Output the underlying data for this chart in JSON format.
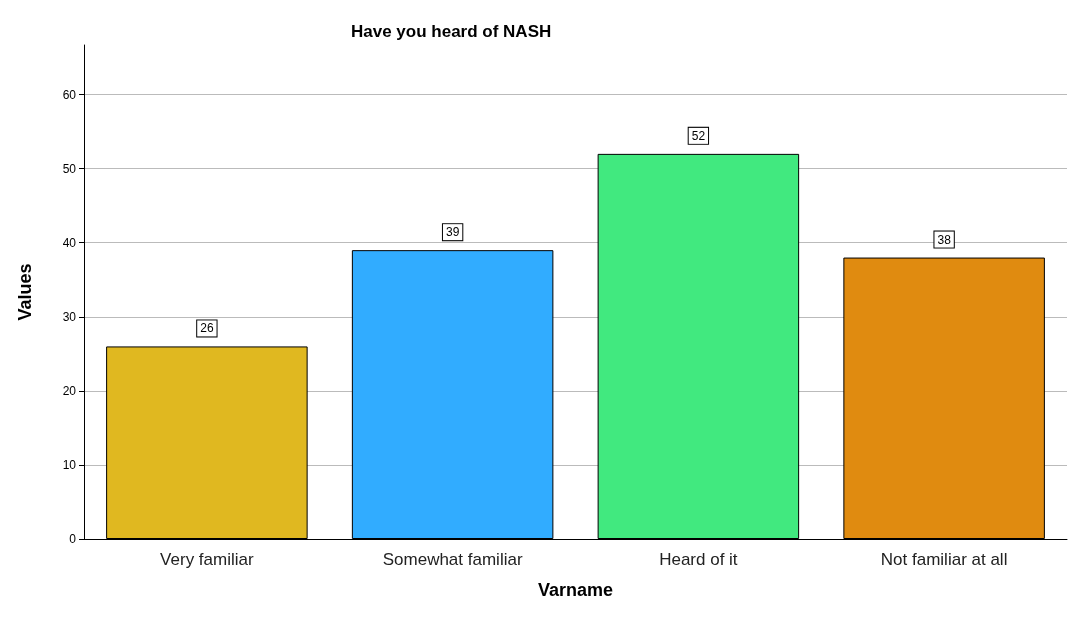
{
  "chart_data": {
    "type": "bar",
    "title": "Have you heard of NASH",
    "xlabel": "Varname",
    "ylabel": "Values",
    "categories": [
      "Very familiar",
      "Somewhat familiar",
      "Heard of it",
      "Not familiar at all"
    ],
    "values": [
      26,
      39,
      52,
      38
    ],
    "colors": [
      "#e0b820",
      "#31acff",
      "#41e97f",
      "#e08b10"
    ],
    "ylim": [
      0,
      66.7
    ],
    "yticks": [
      0,
      10,
      20,
      30,
      40,
      50,
      60
    ],
    "grid": "y",
    "data_labels": true
  }
}
